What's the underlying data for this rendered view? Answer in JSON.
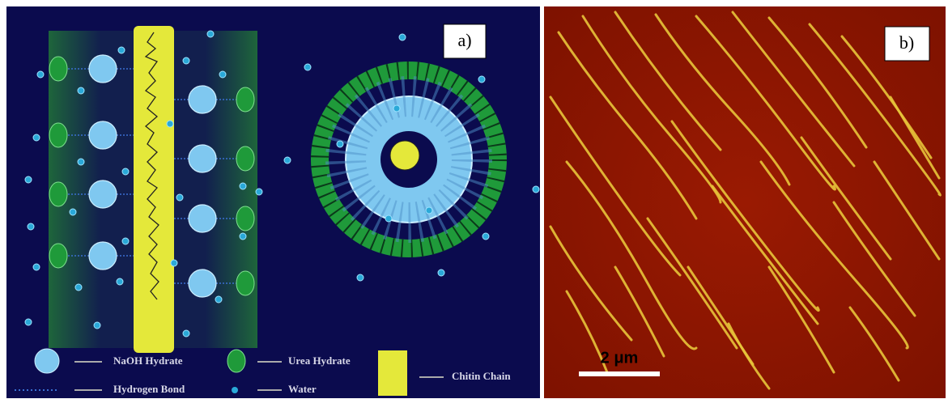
{
  "panel_a": {
    "label": "a)"
  },
  "panel_b": {
    "label": "b)",
    "scale_bar": "2 μm"
  },
  "legend": {
    "naoh_hydrate": "NaOH Hydrate",
    "urea_hydrate": "Urea Hydrate",
    "chitin_chain": "Chitin Chain",
    "hydrogen_bond": "Hydrogen Bond",
    "water": "Water"
  }
}
